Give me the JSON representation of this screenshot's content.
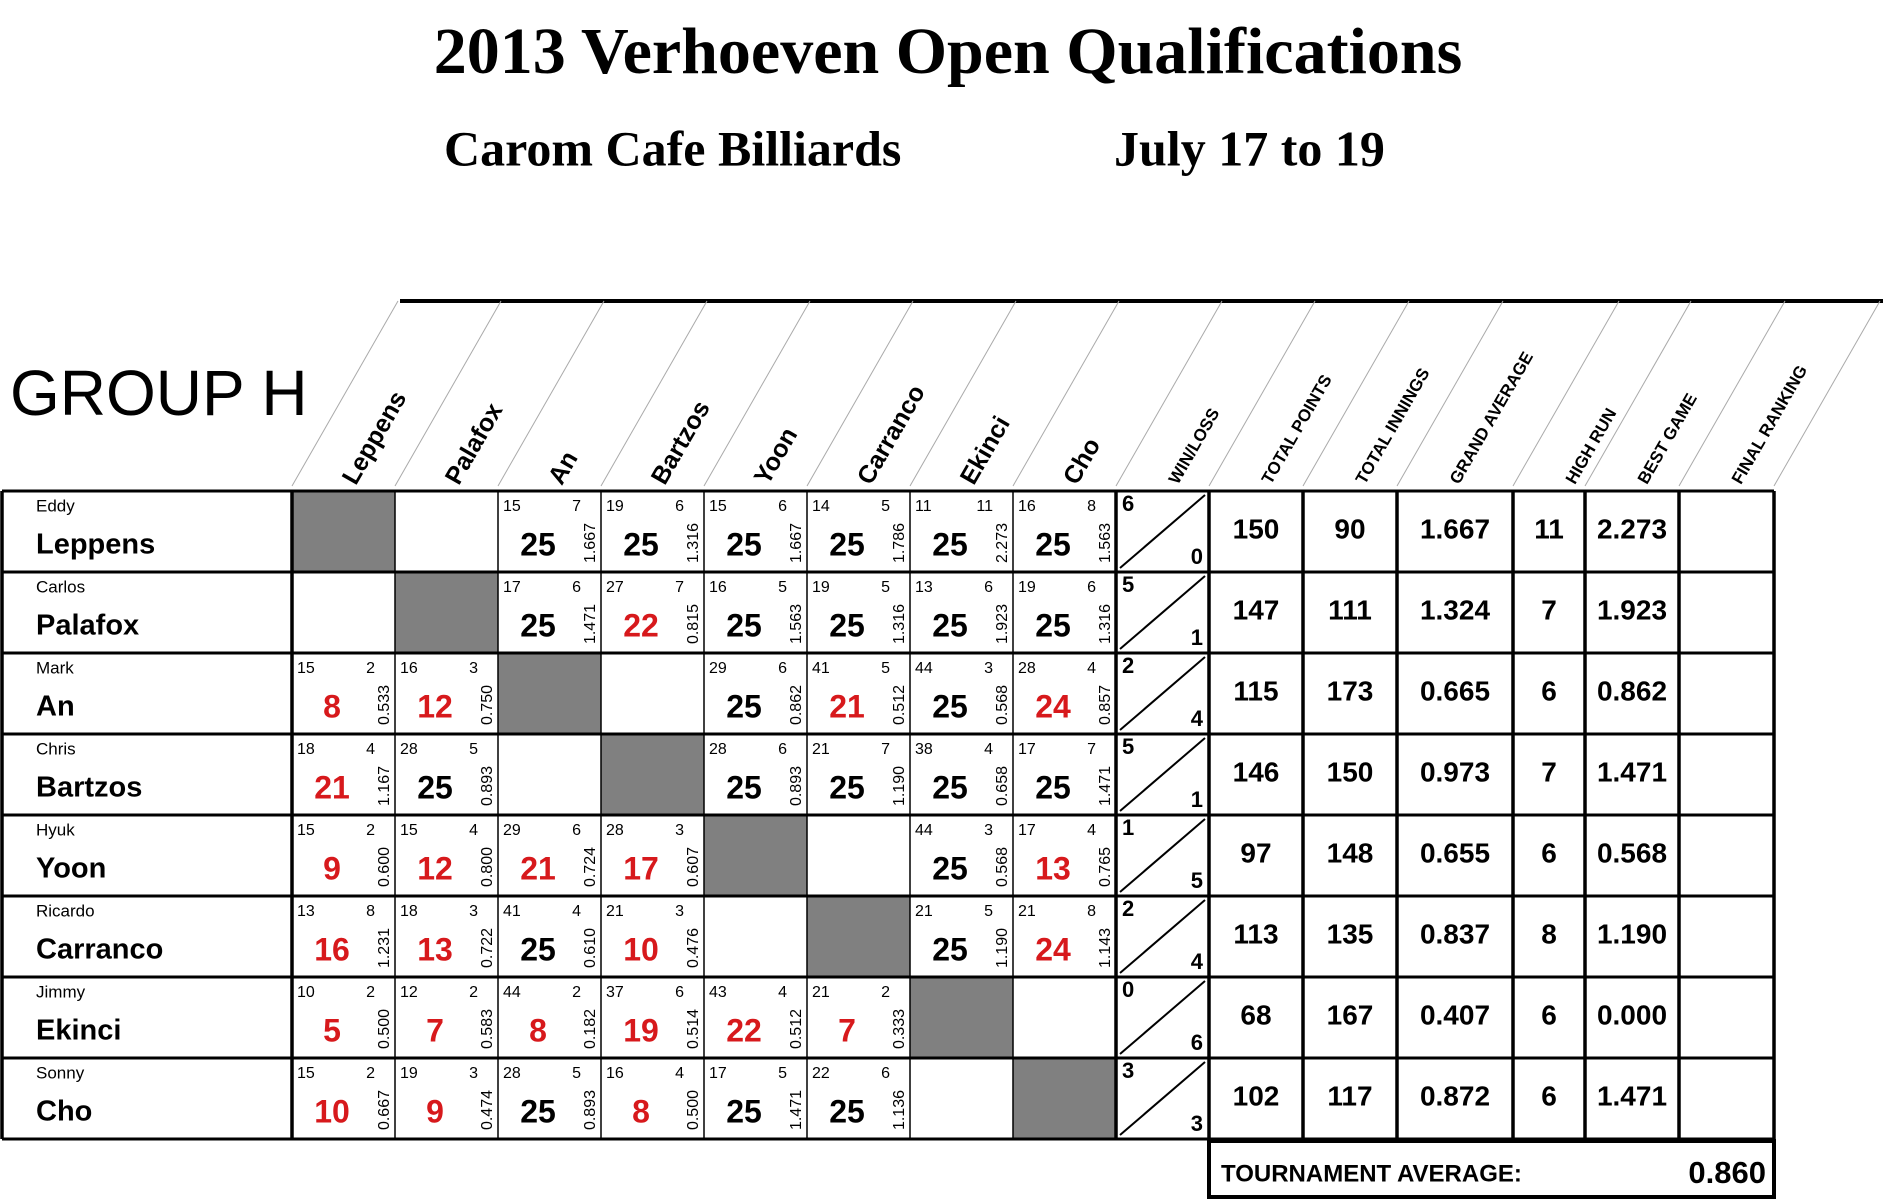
{
  "header": {
    "title": "2013 Verhoeven Open Qualifications",
    "venue": "Carom Cafe Billiards",
    "dates": "July 17 to 19",
    "group": "GROUP H"
  },
  "table": {
    "player_columns": [
      "Leppens",
      "Palafox",
      "An",
      "Bartzos",
      "Yoon",
      "Carranco",
      "Ekinci",
      "Cho"
    ],
    "stat_columns": [
      "WIN/LOSS",
      "TOTAL POINTS",
      "TOTAL INNINGS",
      "GRAND AVERAGE",
      "HIGH RUN",
      "BEST GAME",
      "FINAL RANKING"
    ],
    "rows": [
      {
        "first": "Eddy",
        "last": "Leppens",
        "matches": [
          null,
          null,
          {
            "innings": 15,
            "high_run": 7,
            "points": 25,
            "average": "1.667",
            "color": "#000000"
          },
          {
            "innings": 19,
            "high_run": 6,
            "points": 25,
            "average": "1.316",
            "color": "#000000"
          },
          {
            "innings": 15,
            "high_run": 6,
            "points": 25,
            "average": "1.667",
            "color": "#000000"
          },
          {
            "innings": 14,
            "high_run": 5,
            "points": 25,
            "average": "1.786",
            "color": "#000000"
          },
          {
            "innings": 11,
            "high_run": 11,
            "points": 25,
            "average": "2.273",
            "color": "#000000"
          },
          {
            "innings": 16,
            "high_run": 8,
            "points": 25,
            "average": "1.563",
            "color": "#000000"
          }
        ],
        "win": 6,
        "loss": 0,
        "total_points": 150,
        "total_innings": 90,
        "grand_average": "1.667",
        "high_run": 11,
        "best_game": "2.273"
      },
      {
        "first": "Carlos",
        "last": "Palafox",
        "matches": [
          null,
          null,
          {
            "innings": 17,
            "high_run": 6,
            "points": 25,
            "average": "1.471",
            "color": "#000000"
          },
          {
            "innings": 27,
            "high_run": 7,
            "points": 22,
            "average": "0.815",
            "color": "#d7191c"
          },
          {
            "innings": 16,
            "high_run": 5,
            "points": 25,
            "average": "1.563",
            "color": "#000000"
          },
          {
            "innings": 19,
            "high_run": 5,
            "points": 25,
            "average": "1.316",
            "color": "#000000"
          },
          {
            "innings": 13,
            "high_run": 6,
            "points": 25,
            "average": "1.923",
            "color": "#000000"
          },
          {
            "innings": 19,
            "high_run": 6,
            "points": 25,
            "average": "1.316",
            "color": "#000000"
          }
        ],
        "win": 5,
        "loss": 1,
        "total_points": 147,
        "total_innings": 111,
        "grand_average": "1.324",
        "high_run": 7,
        "best_game": "1.923"
      },
      {
        "first": "Mark",
        "last": "An",
        "matches": [
          {
            "innings": 15,
            "high_run": 2,
            "points": 8,
            "average": "0.533",
            "color": "#d7191c"
          },
          {
            "innings": 16,
            "high_run": 3,
            "points": 12,
            "average": "0.750",
            "color": "#d7191c"
          },
          null,
          null,
          {
            "innings": 29,
            "high_run": 6,
            "points": 25,
            "average": "0.862",
            "color": "#000000"
          },
          {
            "innings": 41,
            "high_run": 5,
            "points": 21,
            "average": "0.512",
            "color": "#d7191c"
          },
          {
            "innings": 44,
            "high_run": 3,
            "points": 25,
            "average": "0.568",
            "color": "#000000"
          },
          {
            "innings": 28,
            "high_run": 4,
            "points": 24,
            "average": "0.857",
            "color": "#d7191c"
          }
        ],
        "win": 2,
        "loss": 4,
        "total_points": 115,
        "total_innings": 173,
        "grand_average": "0.665",
        "high_run": 6,
        "best_game": "0.862"
      },
      {
        "first": "Chris",
        "last": "Bartzos",
        "matches": [
          {
            "innings": 18,
            "high_run": 4,
            "points": 21,
            "average": "1.167",
            "color": "#d7191c"
          },
          {
            "innings": 28,
            "high_run": 5,
            "points": 25,
            "average": "0.893",
            "color": "#000000"
          },
          null,
          null,
          {
            "innings": 28,
            "high_run": 6,
            "points": 25,
            "average": "0.893",
            "color": "#000000"
          },
          {
            "innings": 21,
            "high_run": 7,
            "points": 25,
            "average": "1.190",
            "color": "#000000"
          },
          {
            "innings": 38,
            "high_run": 4,
            "points": 25,
            "average": "0.658",
            "color": "#000000"
          },
          {
            "innings": 17,
            "high_run": 7,
            "points": 25,
            "average": "1.471",
            "color": "#000000"
          }
        ],
        "win": 5,
        "loss": 1,
        "total_points": 146,
        "total_innings": 150,
        "grand_average": "0.973",
        "high_run": 7,
        "best_game": "1.471"
      },
      {
        "first": "Hyuk",
        "last": "Yoon",
        "matches": [
          {
            "innings": 15,
            "high_run": 2,
            "points": 9,
            "average": "0.600",
            "color": "#d7191c"
          },
          {
            "innings": 15,
            "high_run": 4,
            "points": 12,
            "average": "0.800",
            "color": "#d7191c"
          },
          {
            "innings": 29,
            "high_run": 6,
            "points": 21,
            "average": "0.724",
            "color": "#d7191c"
          },
          {
            "innings": 28,
            "high_run": 3,
            "points": 17,
            "average": "0.607",
            "color": "#d7191c"
          },
          null,
          null,
          {
            "innings": 44,
            "high_run": 3,
            "points": 25,
            "average": "0.568",
            "color": "#000000"
          },
          {
            "innings": 17,
            "high_run": 4,
            "points": 13,
            "average": "0.765",
            "color": "#d7191c"
          }
        ],
        "win": 1,
        "loss": 5,
        "total_points": 97,
        "total_innings": 148,
        "grand_average": "0.655",
        "high_run": 6,
        "best_game": "0.568"
      },
      {
        "first": "Ricardo",
        "last": "Carranco",
        "matches": [
          {
            "innings": 13,
            "high_run": 8,
            "points": 16,
            "average": "1.231",
            "color": "#d7191c"
          },
          {
            "innings": 18,
            "high_run": 3,
            "points": 13,
            "average": "0.722",
            "color": "#d7191c"
          },
          {
            "innings": 41,
            "high_run": 4,
            "points": 25,
            "average": "0.610",
            "color": "#000000"
          },
          {
            "innings": 21,
            "high_run": 3,
            "points": 10,
            "average": "0.476",
            "color": "#d7191c"
          },
          null,
          null,
          {
            "innings": 21,
            "high_run": 5,
            "points": 25,
            "average": "1.190",
            "color": "#000000"
          },
          {
            "innings": 21,
            "high_run": 8,
            "points": 24,
            "average": "1.143",
            "color": "#d7191c"
          }
        ],
        "win": 2,
        "loss": 4,
        "total_points": 113,
        "total_innings": 135,
        "grand_average": "0.837",
        "high_run": 8,
        "best_game": "1.190"
      },
      {
        "first": "Jimmy",
        "last": "Ekinci",
        "matches": [
          {
            "innings": 10,
            "high_run": 2,
            "points": 5,
            "average": "0.500",
            "color": "#d7191c"
          },
          {
            "innings": 12,
            "high_run": 2,
            "points": 7,
            "average": "0.583",
            "color": "#d7191c"
          },
          {
            "innings": 44,
            "high_run": 2,
            "points": 8,
            "average": "0.182",
            "color": "#d7191c"
          },
          {
            "innings": 37,
            "high_run": 6,
            "points": 19,
            "average": "0.514",
            "color": "#d7191c"
          },
          {
            "innings": 43,
            "high_run": 4,
            "points": 22,
            "average": "0.512",
            "color": "#d7191c"
          },
          {
            "innings": 21,
            "high_run": 2,
            "points": 7,
            "average": "0.333",
            "color": "#d7191c"
          },
          null,
          null
        ],
        "win": 0,
        "loss": 6,
        "total_points": 68,
        "total_innings": 167,
        "grand_average": "0.407",
        "high_run": 6,
        "best_game": "0.000"
      },
      {
        "first": "Sonny",
        "last": "Cho",
        "matches": [
          {
            "innings": 15,
            "high_run": 2,
            "points": 10,
            "average": "0.667",
            "color": "#d7191c"
          },
          {
            "innings": 19,
            "high_run": 3,
            "points": 9,
            "average": "0.474",
            "color": "#d7191c"
          },
          {
            "innings": 28,
            "high_run": 5,
            "points": 25,
            "average": "0.893",
            "color": "#000000"
          },
          {
            "innings": 16,
            "high_run": 4,
            "points": 8,
            "average": "0.500",
            "color": "#d7191c"
          },
          {
            "innings": 17,
            "high_run": 5,
            "points": 25,
            "average": "1.471",
            "color": "#000000"
          },
          {
            "innings": 22,
            "high_run": 6,
            "points": 25,
            "average": "1.136",
            "color": "#000000"
          },
          null,
          null
        ],
        "win": 3,
        "loss": 3,
        "total_points": 102,
        "total_innings": 117,
        "grand_average": "0.872",
        "high_run": 6,
        "best_game": "1.471"
      }
    ],
    "tournament_average_label": "TOURNAMENT AVERAGE:",
    "tournament_average": "0.860"
  }
}
